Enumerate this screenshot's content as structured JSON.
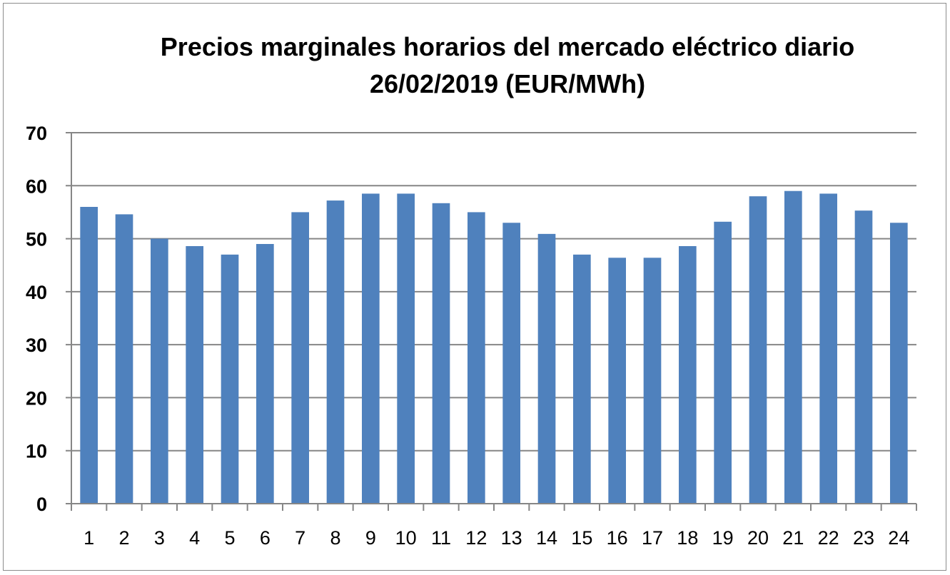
{
  "chart_data": {
    "type": "bar",
    "title": "Precios marginales horarios del mercado eléctrico diario",
    "subtitle": "26/02/2019  (EUR/MWh)",
    "xlabel": "",
    "ylabel": "",
    "categories": [
      "1",
      "2",
      "3",
      "4",
      "5",
      "6",
      "7",
      "8",
      "9",
      "10",
      "11",
      "12",
      "13",
      "14",
      "15",
      "16",
      "17",
      "18",
      "19",
      "20",
      "21",
      "22",
      "23",
      "24"
    ],
    "values": [
      56.0,
      54.6,
      50.0,
      48.6,
      47.0,
      49.0,
      55.0,
      57.2,
      58.5,
      58.5,
      56.7,
      55.0,
      53.0,
      50.9,
      47.0,
      46.4,
      46.4,
      48.6,
      53.2,
      58.0,
      59.0,
      58.5,
      55.3,
      53.0
    ],
    "ylim": [
      0,
      70
    ],
    "yticks": [
      "0",
      "10",
      "20",
      "30",
      "40",
      "50",
      "60",
      "70"
    ],
    "grid": true,
    "legend": "none",
    "colors": {
      "bar": "#4f81bd",
      "grid": "#868686",
      "axis": "#868686",
      "border": "#8c8c8c"
    }
  }
}
